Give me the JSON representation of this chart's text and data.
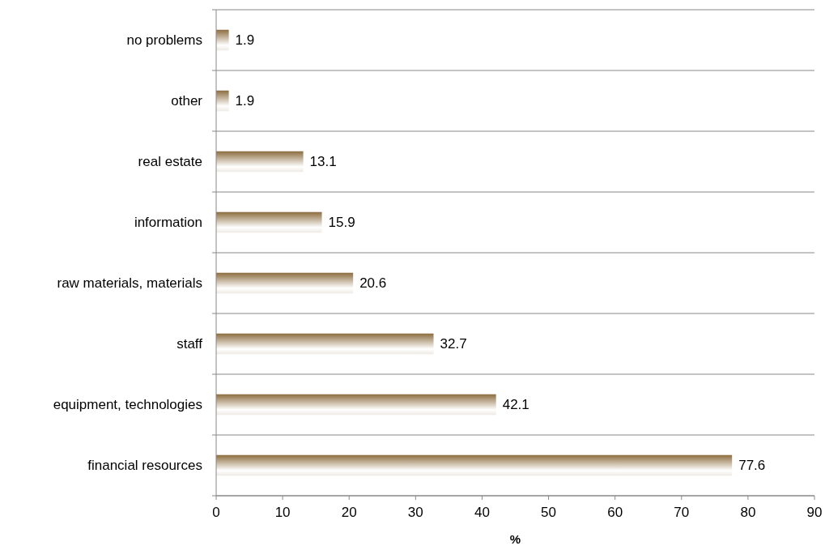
{
  "chart_data": {
    "type": "bar",
    "orientation": "horizontal",
    "categories": [
      "no problems",
      "other",
      "real estate",
      "information",
      "raw materials, materials",
      "staff",
      "equipment, technologies",
      "financial resources"
    ],
    "values": [
      1.9,
      1.9,
      13.1,
      15.9,
      20.6,
      32.7,
      42.1,
      77.6
    ],
    "color": "#8c6d3f",
    "xlim": [
      0,
      90
    ],
    "xticks": [
      0,
      10,
      20,
      30,
      40,
      50,
      60,
      70,
      80,
      90
    ],
    "xlabel": "%",
    "grid": "y",
    "data_labels": true
  }
}
